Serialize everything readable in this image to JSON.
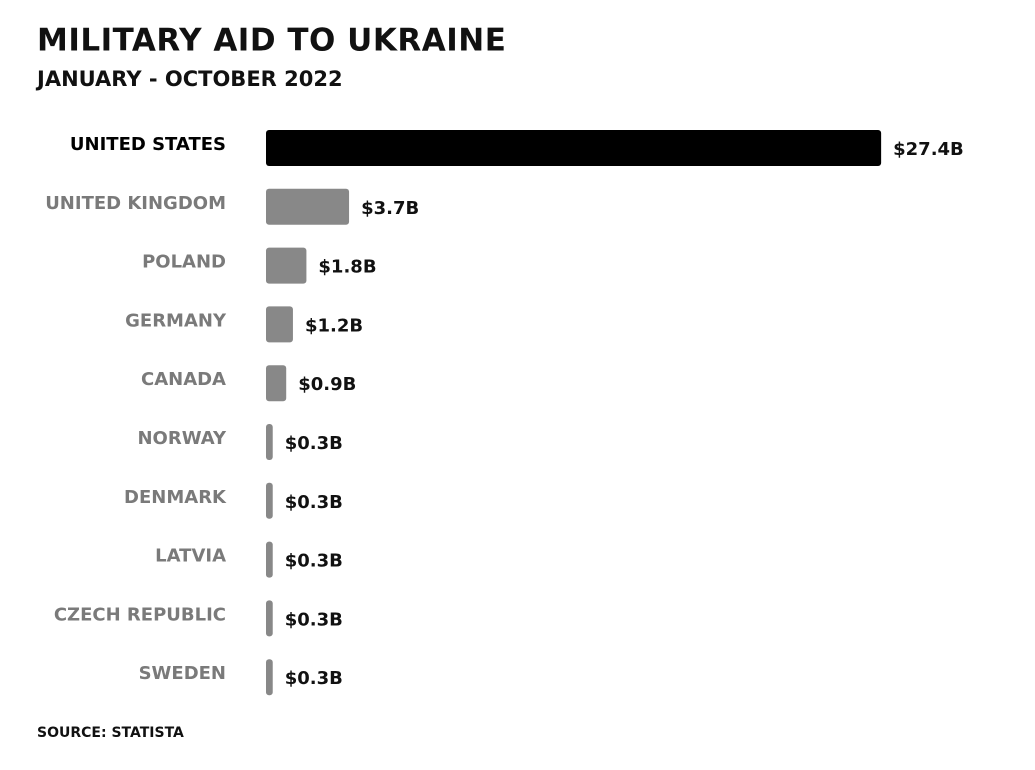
{
  "chart_data": {
    "type": "bar",
    "orientation": "horizontal",
    "title": "MILITARY AID TO UKRAINE",
    "subtitle": "JANUARY - OCTOBER 2022",
    "categories": [
      "UNITED STATES",
      "UNITED KINGDOM",
      "POLAND",
      "GERMANY",
      "CANADA",
      "NORWAY",
      "DENMARK",
      "LATVIA",
      "CZECH REPUBLIC",
      "SWEDEN"
    ],
    "values": [
      27.4,
      3.7,
      1.8,
      1.2,
      0.9,
      0.3,
      0.3,
      0.3,
      0.3,
      0.3
    ],
    "value_labels": [
      "$27.4B",
      "$3.7B",
      "$1.8B",
      "$1.2B",
      "$0.9B",
      "$0.3B",
      "$0.3B",
      "$0.3B",
      "$0.3B",
      "$0.3B"
    ],
    "colors": [
      "#000000",
      "#888888",
      "#888888",
      "#888888",
      "#888888",
      "#888888",
      "#888888",
      "#888888",
      "#888888",
      "#888888"
    ],
    "source": "SOURCE: STATISTA"
  }
}
